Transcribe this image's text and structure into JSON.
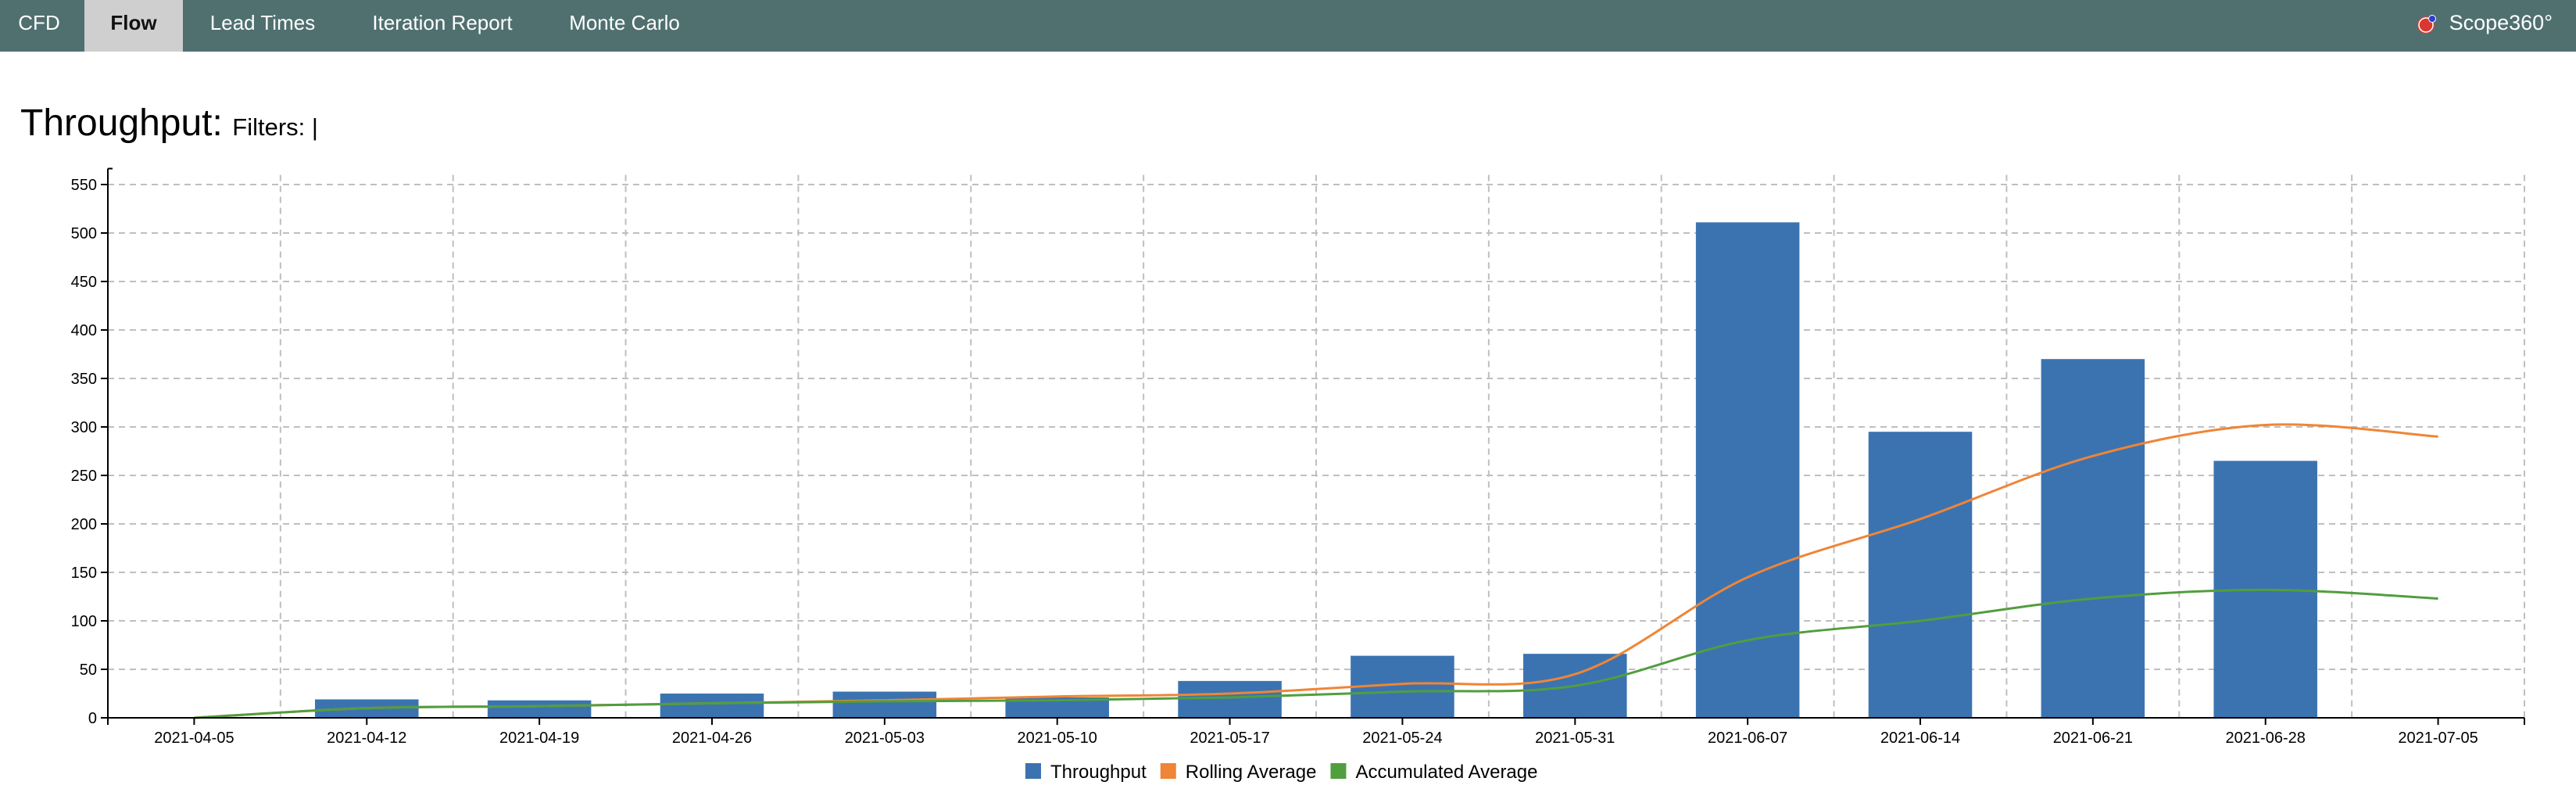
{
  "nav": {
    "tabs": [
      {
        "label": "CFD",
        "active": false
      },
      {
        "label": "Flow",
        "active": true
      },
      {
        "label": "Lead Times",
        "active": false
      },
      {
        "label": "Iteration Report",
        "active": false
      },
      {
        "label": "Monte Carlo",
        "active": false
      }
    ],
    "brand": "Scope360°"
  },
  "page": {
    "title": "Throughput:",
    "filters_label": "Filters: |"
  },
  "colors": {
    "nav_bg": "#507070",
    "throughput": "#3b73b1",
    "rolling": "#ef8536",
    "accumulated": "#519e3e"
  },
  "chart_data": {
    "type": "bar",
    "categories": [
      "2021-04-05",
      "2021-04-12",
      "2021-04-19",
      "2021-04-26",
      "2021-05-03",
      "2021-05-10",
      "2021-05-17",
      "2021-05-24",
      "2021-05-31",
      "2021-06-07",
      "2021-06-14",
      "2021-06-21",
      "2021-06-28",
      "2021-07-05"
    ],
    "series": [
      {
        "name": "Throughput",
        "type": "bar",
        "color": "#3b73b1",
        "values": [
          0,
          19,
          18,
          25,
          27,
          21,
          38,
          64,
          66,
          511,
          295,
          370,
          265,
          0
        ]
      },
      {
        "name": "Rolling Average",
        "type": "line",
        "color": "#ef8536",
        "values": [
          0,
          10,
          12,
          15,
          18,
          22,
          25,
          35,
          45,
          145,
          205,
          270,
          302,
          290
        ]
      },
      {
        "name": "Accumulated Average",
        "type": "line",
        "color": "#519e3e",
        "values": [
          0,
          10,
          12,
          15,
          17,
          18,
          21,
          27,
          33,
          80,
          100,
          123,
          132,
          123
        ]
      }
    ],
    "yticks": [
      0,
      50,
      100,
      150,
      200,
      250,
      300,
      350,
      400,
      450,
      500,
      550
    ],
    "ylim": [
      0,
      560
    ],
    "grid": true,
    "legend_position": "bottom-center"
  }
}
